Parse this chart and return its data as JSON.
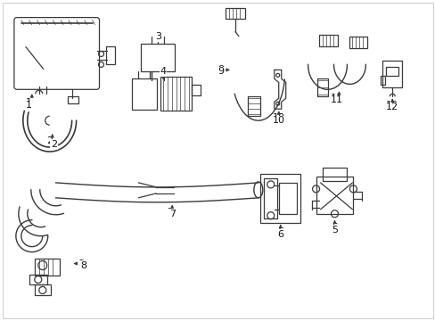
{
  "bg_color": "#ffffff",
  "line_color": "#3a3a3a",
  "fig_width": 4.89,
  "fig_height": 3.6,
  "dpi": 100,
  "border_color": "#cccccc"
}
